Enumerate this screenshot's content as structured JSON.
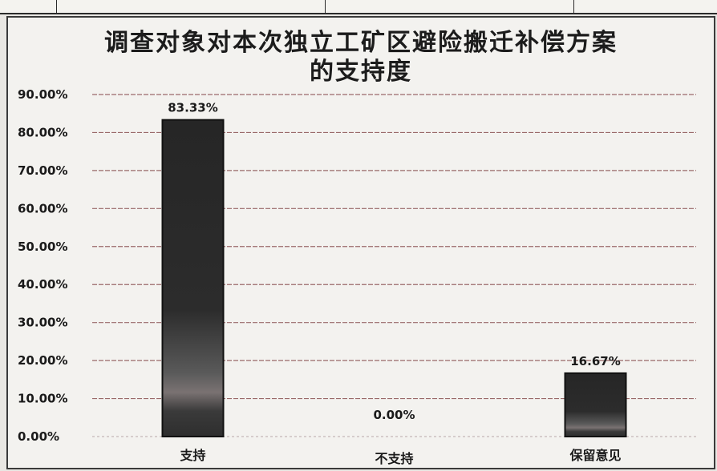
{
  "chart_data": {
    "type": "bar",
    "title_lines": [
      "调查对象对本次独立工矿区避险搬迁补偿方案",
      "的支持度"
    ],
    "categories": [
      "支持",
      "不支持",
      "保留意见"
    ],
    "values": [
      83.33,
      0.0,
      16.67
    ],
    "data_labels": [
      "83.33%",
      "0.00%",
      "16.67%"
    ],
    "y_ticks": [
      "0.00%",
      "10.00%",
      "20.00%",
      "30.00%",
      "40.00%",
      "50.00%",
      "60.00%",
      "70.00%",
      "80.00%",
      "90.00%"
    ],
    "ylim": [
      0,
      90
    ],
    "grid": true,
    "legend": "none",
    "colors": {
      "bar": "#2a2a2a",
      "bar_edge": "#111111",
      "gridline": "#9a6a6a",
      "background": "#f3f2ef"
    }
  }
}
